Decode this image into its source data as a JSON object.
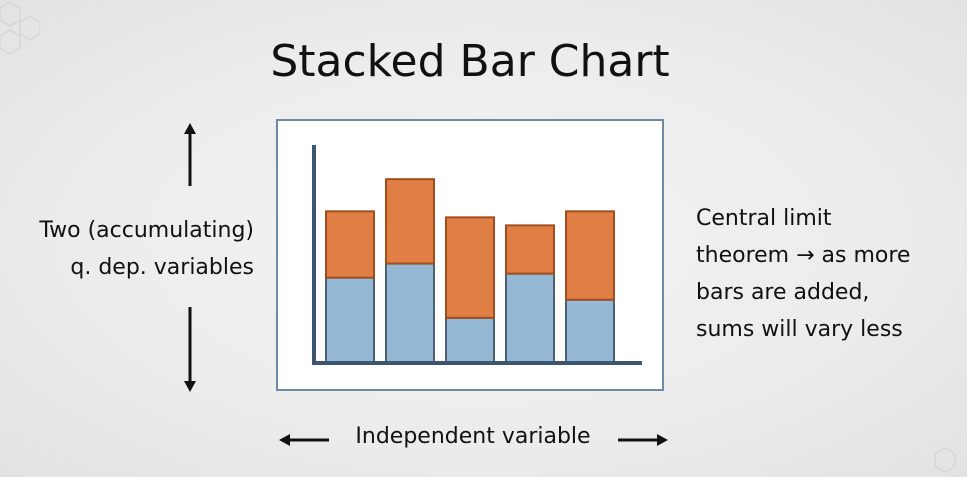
{
  "slide": {
    "title": "Stacked Bar Chart",
    "left_label_line1": "Two (accumulating)",
    "left_label_line2": "q. dep. variables",
    "right_note_lines": [
      "Central limit",
      "theorem → as more",
      "bars are added,",
      "sums will vary less"
    ],
    "bottom_label": "Independent variable"
  },
  "colors": {
    "bottom_series": "#95b8d5",
    "top_series": "#e07f45",
    "bar_outline": "#4d6175",
    "top_outline": "#a44d1c",
    "axis": "#3c566f"
  },
  "chart_data": {
    "type": "bar",
    "stacked": true,
    "categories": [
      "",
      "",
      "",
      "",
      ""
    ],
    "series": [
      {
        "values": [
          4.2,
          4.9,
          2.2,
          4.4,
          3.1
        ]
      },
      {
        "values": [
          3.3,
          4.2,
          5.0,
          2.4,
          4.4
        ]
      }
    ],
    "ylim": [
      0,
      11
    ],
    "xlabel": "",
    "ylabel": "",
    "axes_labels_shown": false,
    "grid": false
  }
}
